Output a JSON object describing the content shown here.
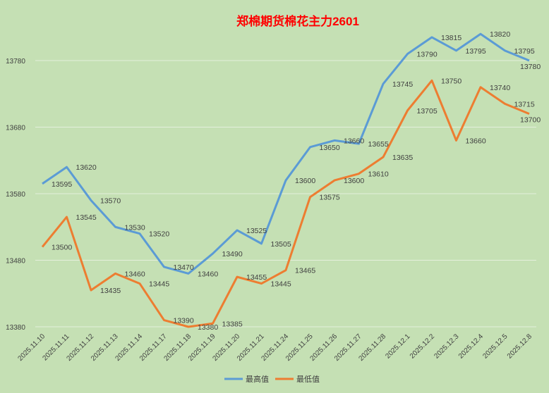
{
  "chart_data": {
    "type": "line",
    "title": "郑棉期货棉花主力2601",
    "categories": [
      "2025.11.10",
      "2025.11.11",
      "2025.11.12",
      "2025.11.13",
      "2025.11.14",
      "2025.11.17",
      "2025.11.18",
      "2025.11.19",
      "2025.11.20",
      "2025.11.21",
      "2025.11.24",
      "2025.11.25",
      "2025.11.26",
      "2025.11.27",
      "2025.11.28",
      "2025.12.1",
      "2025.12.2",
      "2025.12.3",
      "2025.12.4",
      "2025.12.5",
      "2025.12.8"
    ],
    "series": [
      {
        "name": "最高值",
        "color": "#5b9bd5",
        "values": [
          13595,
          13620,
          13570,
          13530,
          13520,
          13470,
          13460,
          13490,
          13525,
          13505,
          13600,
          13650,
          13660,
          13655,
          13745,
          13790,
          13815,
          13795,
          13820,
          13795,
          13780
        ]
      },
      {
        "name": "最低值",
        "color": "#ed7d31",
        "values": [
          13500,
          13545,
          13435,
          13460,
          13445,
          13390,
          13380,
          13385,
          13455,
          13445,
          13465,
          13575,
          13600,
          13610,
          13635,
          13705,
          13750,
          13660,
          13740,
          13715,
          13700
        ]
      }
    ],
    "yticks": [
      13380,
      13480,
      13580,
      13680,
      13780
    ],
    "ylim": [
      13380,
      13840
    ],
    "grid": true,
    "legend": "bottom",
    "title_color": "#ff0000"
  }
}
